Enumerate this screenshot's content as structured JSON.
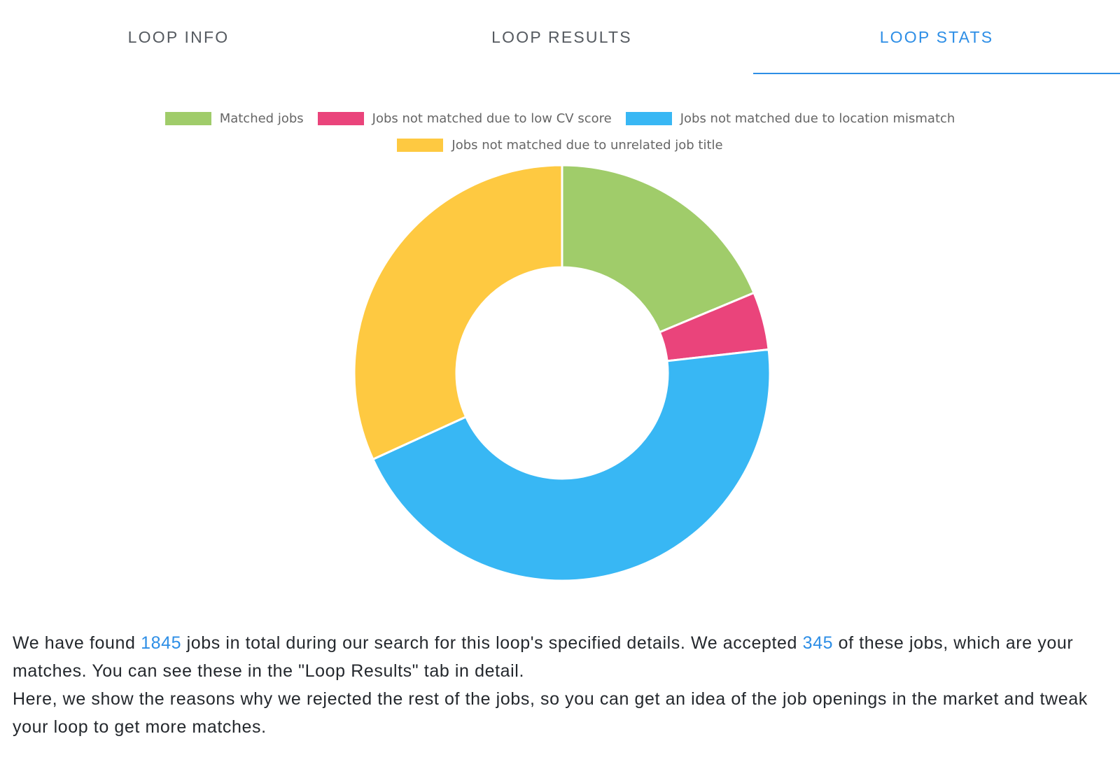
{
  "tabs": [
    {
      "label": "LOOP INFO"
    },
    {
      "label": "LOOP RESULTS"
    },
    {
      "label": "LOOP STATS"
    }
  ],
  "active_tab_index": 2,
  "colors": {
    "accent": "#2d8ee6"
  },
  "chart_data": {
    "type": "pie",
    "donut": true,
    "title": "",
    "legend_position": "top",
    "total": 1845,
    "series": [
      {
        "name": "Matched jobs",
        "value": 345,
        "color": "#a0cc6a"
      },
      {
        "name": "Jobs not matched due to low CV score",
        "value": 83,
        "color": "#ea447b"
      },
      {
        "name": "Jobs not matched due to location mismatch",
        "value": 830,
        "color": "#38b7f4"
      },
      {
        "name": "Jobs not matched due to unrelated job title",
        "value": 587,
        "color": "#fec941"
      }
    ]
  },
  "summary": {
    "line1_a": "We have found ",
    "total_jobs": "1845",
    "line1_b": " jobs in total during our search for this loop's specified details. We accepted ",
    "accepted_jobs": "345",
    "line1_c": " of these jobs, which are your matches. You can see these in the \"Loop Results\" tab in detail.",
    "line2": "Here, we show the reasons why we rejected the rest of the jobs, so you can get an idea of the job openings in the market and tweak your loop to get more matches."
  }
}
